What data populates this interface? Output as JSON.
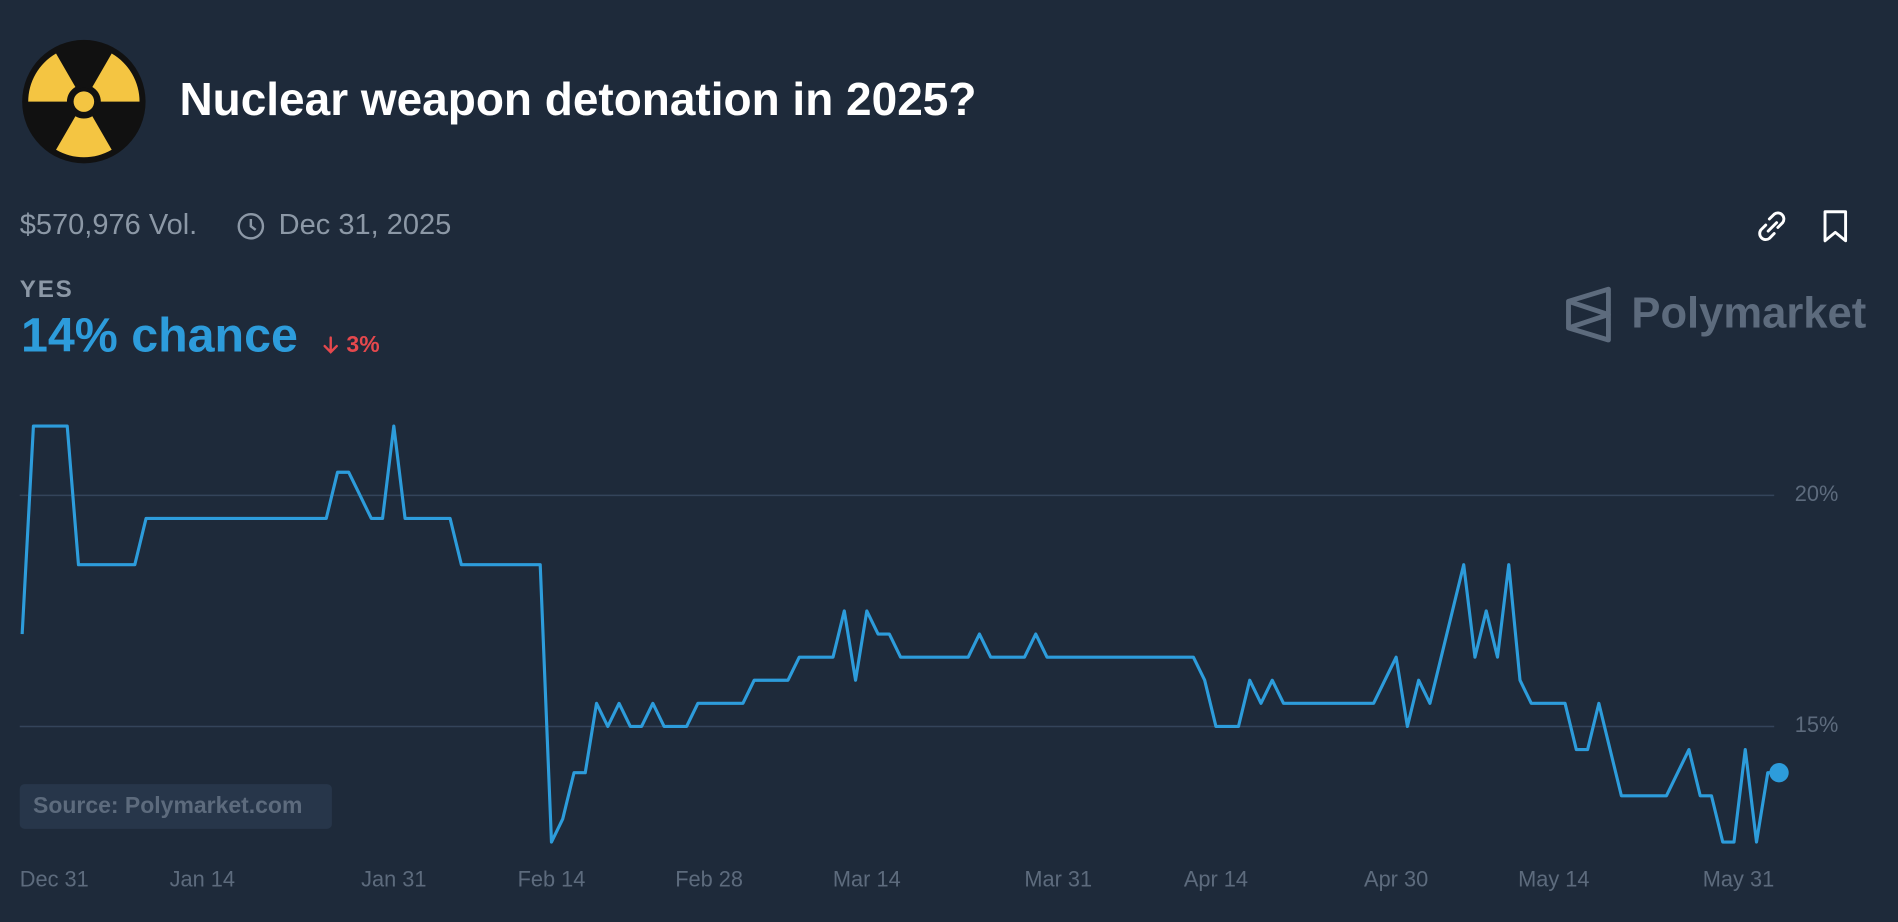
{
  "header": {
    "title": "Nuclear weapon detonation in 2025?",
    "volume": "$570,976 Vol.",
    "end_date": "Dec 31, 2025",
    "outcome": "YES",
    "chance": "14% chance",
    "change": "3%",
    "brand": "Polymarket",
    "source": "Source: Polymarket.com"
  },
  "chart_data": {
    "type": "line",
    "x": [
      "Dec 29",
      "Dec 30",
      "Jan 2",
      "Jan 3",
      "Jan 8",
      "Jan 9",
      "Jan 25",
      "Jan 26",
      "Jan 27",
      "Jan 28",
      "Jan 29",
      "Jan 30",
      "Jan 31",
      "Feb 1",
      "Feb 5",
      "Feb 6",
      "Feb 13",
      "Feb 14",
      "Feb 15",
      "Feb 16",
      "Feb 17",
      "Feb 18",
      "Feb 19",
      "Feb 20",
      "Feb 21",
      "Feb 22",
      "Feb 23",
      "Feb 24",
      "Feb 26",
      "Feb 27",
      "Mar 3",
      "Mar 4",
      "Mar 7",
      "Mar 8",
      "Mar 11",
      "Mar 12",
      "Mar 13",
      "Mar 14",
      "Mar 15",
      "Mar 16",
      "Mar 17",
      "Mar 23",
      "Mar 24",
      "Mar 25",
      "Mar 28",
      "Mar 29",
      "Mar 30",
      "Apr 12",
      "Apr 13",
      "Apr 14",
      "Apr 16",
      "Apr 17",
      "Apr 18",
      "Apr 19",
      "Apr 20",
      "Apr 28",
      "Apr 29",
      "Apr 30",
      "May 1",
      "May 2",
      "May 3",
      "May 4",
      "May 5",
      "May 6",
      "May 7",
      "May 8",
      "May 9",
      "May 10",
      "May 11",
      "May 12",
      "May 15",
      "May 16",
      "May 17",
      "May 18",
      "May 19",
      "May 20",
      "May 24",
      "May 25",
      "May 26",
      "May 27",
      "May 28",
      "May 29",
      "May 30",
      "May 31",
      "Jun 1",
      "Jun 2",
      "Jun 3"
    ],
    "series": [
      {
        "name": "YES",
        "color": "#2d9cdb",
        "values": [
          17,
          21.5,
          21.5,
          18.5,
          18.5,
          19.5,
          19.5,
          20.5,
          20.5,
          20,
          19.5,
          19.5,
          21.5,
          19.5,
          19.5,
          18.5,
          18.5,
          12.5,
          13,
          14,
          14,
          15.5,
          15,
          15.5,
          15,
          15,
          15.5,
          15,
          15,
          15.5,
          15.5,
          16,
          16,
          16.5,
          16.5,
          17.5,
          16,
          17.5,
          17,
          17,
          16.5,
          16.5,
          17,
          16.5,
          16.5,
          17,
          16.5,
          16.5,
          16,
          15,
          15,
          16,
          15.5,
          16,
          15.5,
          15.5,
          16,
          16.5,
          15,
          16,
          15.5,
          16.5,
          17.5,
          18.5,
          16.5,
          17.5,
          16.5,
          18.5,
          16,
          15.5,
          15.5,
          14.5,
          14.5,
          15.5,
          14.5,
          13.5,
          13.5,
          14,
          14.5,
          13.5,
          13.5,
          12.5,
          12.5,
          14.5,
          12.5,
          14,
          14
        ]
      }
    ],
    "xlim": [
      "Dec 29",
      "Jun 3"
    ],
    "xticks": [
      "Dec 31",
      "Jan 14",
      "Jan 31",
      "Feb 14",
      "Feb 28",
      "Mar 14",
      "Mar 31",
      "Apr 14",
      "Apr 30",
      "May 14",
      "May 31"
    ],
    "ylim": [
      12,
      22
    ],
    "yticks": [
      {
        "value": 15,
        "label": "15%"
      },
      {
        "value": 20,
        "label": "20%"
      }
    ],
    "grid": true
  }
}
